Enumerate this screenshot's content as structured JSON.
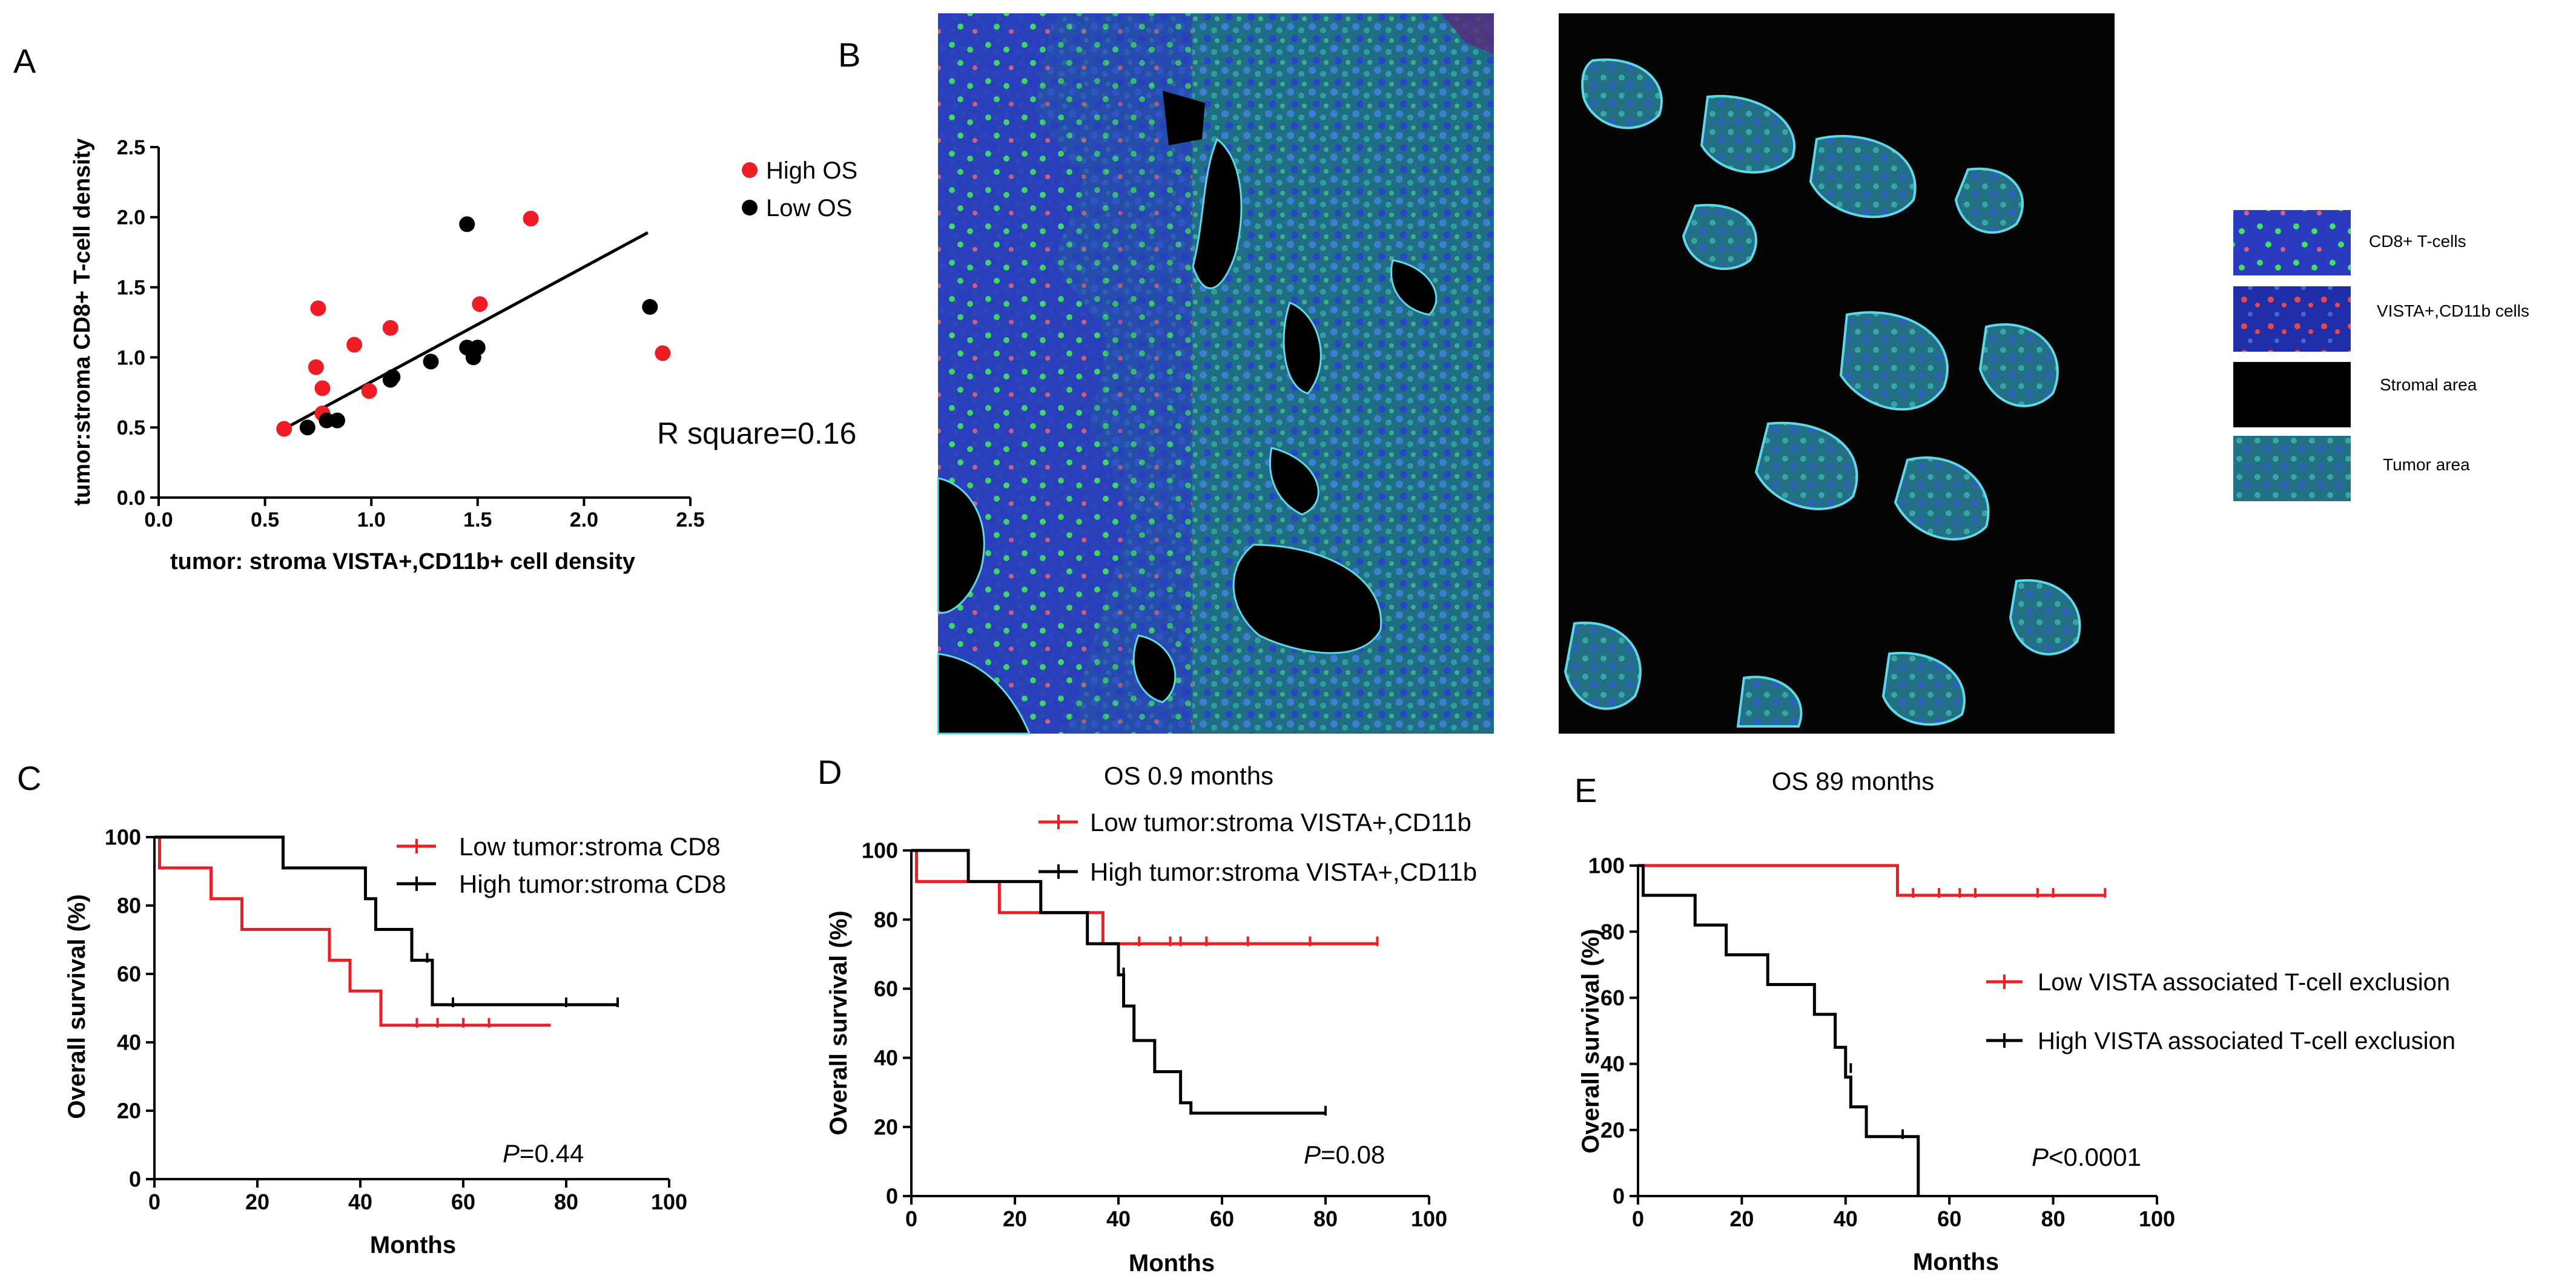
{
  "panel_letters": {
    "a": "A",
    "b": "B",
    "c": "C",
    "d": "D",
    "e": "E"
  },
  "micro_legend": {
    "items": [
      "CD8+ T-cells",
      "VISTA+,CD11b cells",
      "Stromal area",
      "Tumor area"
    ],
    "swatch_colors": {
      "tumor": "#1f6f86",
      "stroma": "#000000",
      "cd8": "#39e05a",
      "vista": "#e8474f",
      "nuclei": "#2a3bd1"
    }
  },
  "panel_d_title": "OS 0.9 months",
  "panel_e_title": "OS 89 months",
  "chart_data": [
    {
      "panel": "A",
      "type": "scatter",
      "xlabel": "tumor: stroma VISTA+,CD11b+ cell density",
      "ylabel": "tumor:stroma CD8+ T-cell density",
      "xlim": [
        0,
        2.5
      ],
      "ylim": [
        0,
        2.5
      ],
      "xticks": [
        "0.0",
        "0.5",
        "1.0",
        "1.5",
        "2.0",
        "2.5"
      ],
      "yticks": [
        "0.0",
        "0.5",
        "1.0",
        "1.5",
        "2.0",
        "2.5"
      ],
      "annotation": "R square=0.16",
      "legend_position": "top-right",
      "series": [
        {
          "name": "High OS",
          "color": "#ee1c24",
          "points": [
            [
              0.59,
              0.49
            ],
            [
              0.74,
              0.93
            ],
            [
              0.75,
              1.35
            ],
            [
              0.77,
              0.78
            ],
            [
              0.77,
              0.6
            ],
            [
              0.92,
              1.09
            ],
            [
              0.99,
              0.76
            ],
            [
              1.09,
              1.21
            ],
            [
              1.51,
              1.38
            ],
            [
              1.75,
              1.99
            ],
            [
              2.37,
              1.03
            ]
          ]
        },
        {
          "name": "Low OS",
          "color": "#000000",
          "points": [
            [
              0.7,
              0.5
            ],
            [
              0.79,
              0.55
            ],
            [
              0.84,
              0.55
            ],
            [
              1.09,
              0.84
            ],
            [
              1.1,
              0.86
            ],
            [
              1.28,
              0.97
            ],
            [
              1.45,
              1.07
            ],
            [
              1.45,
              1.95
            ],
            [
              1.48,
              1.0
            ],
            [
              1.5,
              1.07
            ],
            [
              2.31,
              1.36
            ]
          ]
        }
      ],
      "fit_line": [
        [
          0.59,
          0.49
        ],
        [
          2.3,
          1.89
        ]
      ]
    },
    {
      "panel": "C",
      "type": "line",
      "xlabel": "Months",
      "ylabel": "Overall survival (%)",
      "xlim": [
        0,
        100
      ],
      "ylim": [
        0,
        100
      ],
      "xticks": [
        "0",
        "20",
        "40",
        "60",
        "80",
        "100"
      ],
      "yticks": [
        "0",
        "20",
        "40",
        "60",
        "80",
        "100"
      ],
      "p_prefix": "P",
      "p_value": "=0.44",
      "legend_position": "top-right",
      "series": [
        {
          "name": "Low tumor:stroma CD8",
          "color": "#ee1c24",
          "steps": [
            [
              0,
              100
            ],
            [
              1,
              91
            ],
            [
              11,
              82
            ],
            [
              17,
              73
            ],
            [
              34,
              64
            ],
            [
              38,
              55
            ],
            [
              44,
              45
            ],
            [
              77,
              45
            ]
          ],
          "censors": [
            [
              51,
              45
            ],
            [
              55,
              45
            ],
            [
              60,
              45
            ],
            [
              65,
              45
            ]
          ]
        },
        {
          "name": "High tumor:stroma CD8",
          "color": "#000000",
          "steps": [
            [
              0,
              100
            ],
            [
              25,
              91
            ],
            [
              41,
              82
            ],
            [
              43,
              73
            ],
            [
              50,
              64
            ],
            [
              54,
              51
            ],
            [
              90,
              51
            ]
          ],
          "censors": [
            [
              53,
              64
            ],
            [
              58,
              51
            ],
            [
              80,
              51
            ],
            [
              90,
              51
            ]
          ]
        }
      ]
    },
    {
      "panel": "D",
      "type": "line",
      "xlabel": "Months",
      "ylabel": "Overall survival (%)",
      "xlim": [
        0,
        100
      ],
      "ylim": [
        0,
        100
      ],
      "xticks": [
        "0",
        "20",
        "40",
        "60",
        "80",
        "100"
      ],
      "yticks": [
        "0",
        "20",
        "40",
        "60",
        "80",
        "100"
      ],
      "p_prefix": "P",
      "p_value": "=0.08",
      "legend_position": "top-right",
      "series": [
        {
          "name": "Low tumor:stroma VISTA+,CD11b",
          "color": "#ee1c24",
          "steps": [
            [
              0,
              100
            ],
            [
              1,
              91
            ],
            [
              17,
              82
            ],
            [
              37,
              73
            ],
            [
              90,
              73
            ]
          ],
          "censors": [
            [
              44,
              73
            ],
            [
              50,
              73
            ],
            [
              52,
              73
            ],
            [
              57,
              73
            ],
            [
              65,
              73
            ],
            [
              77,
              73
            ],
            [
              90,
              73
            ]
          ]
        },
        {
          "name": "High tumor:stroma VISTA+,CD11b",
          "color": "#000000",
          "steps": [
            [
              0,
              100
            ],
            [
              11,
              91
            ],
            [
              25,
              82
            ],
            [
              34,
              73
            ],
            [
              40,
              64
            ],
            [
              41,
              55
            ],
            [
              43,
              45
            ],
            [
              47,
              36
            ],
            [
              52,
              27
            ],
            [
              54,
              24
            ],
            [
              80,
              24
            ]
          ],
          "censors": [
            [
              41,
              64
            ],
            [
              80,
              24
            ]
          ]
        }
      ]
    },
    {
      "panel": "E",
      "type": "line",
      "xlabel": "Months",
      "ylabel": "Overall survival (%)",
      "xlim": [
        0,
        100
      ],
      "ylim": [
        0,
        100
      ],
      "xticks": [
        "0",
        "20",
        "40",
        "60",
        "80",
        "100"
      ],
      "yticks": [
        "0",
        "20",
        "40",
        "60",
        "80",
        "100"
      ],
      "p_prefix": "P",
      "p_value": "<0.0001",
      "legend_position": "right",
      "series": [
        {
          "name": "Low VISTA associated T-cell exclusion",
          "color": "#ee1c24",
          "steps": [
            [
              0,
              100
            ],
            [
              50,
              91
            ],
            [
              90,
              91
            ]
          ],
          "censors": [
            [
              53,
              91
            ],
            [
              58,
              91
            ],
            [
              62,
              91
            ],
            [
              65,
              91
            ],
            [
              77,
              91
            ],
            [
              80,
              91
            ],
            [
              90,
              91
            ]
          ]
        },
        {
          "name": "High VISTA associated T-cell exclusion",
          "color": "#000000",
          "steps": [
            [
              0,
              100
            ],
            [
              1,
              91
            ],
            [
              11,
              82
            ],
            [
              17,
              73
            ],
            [
              25,
              64
            ],
            [
              34,
              55
            ],
            [
              38,
              45
            ],
            [
              40,
              36
            ],
            [
              41,
              27
            ],
            [
              44,
              18
            ],
            [
              53,
              18
            ],
            [
              54,
              0
            ]
          ],
          "censors": [
            [
              41,
              38
            ],
            [
              51,
              18
            ]
          ]
        }
      ]
    }
  ]
}
